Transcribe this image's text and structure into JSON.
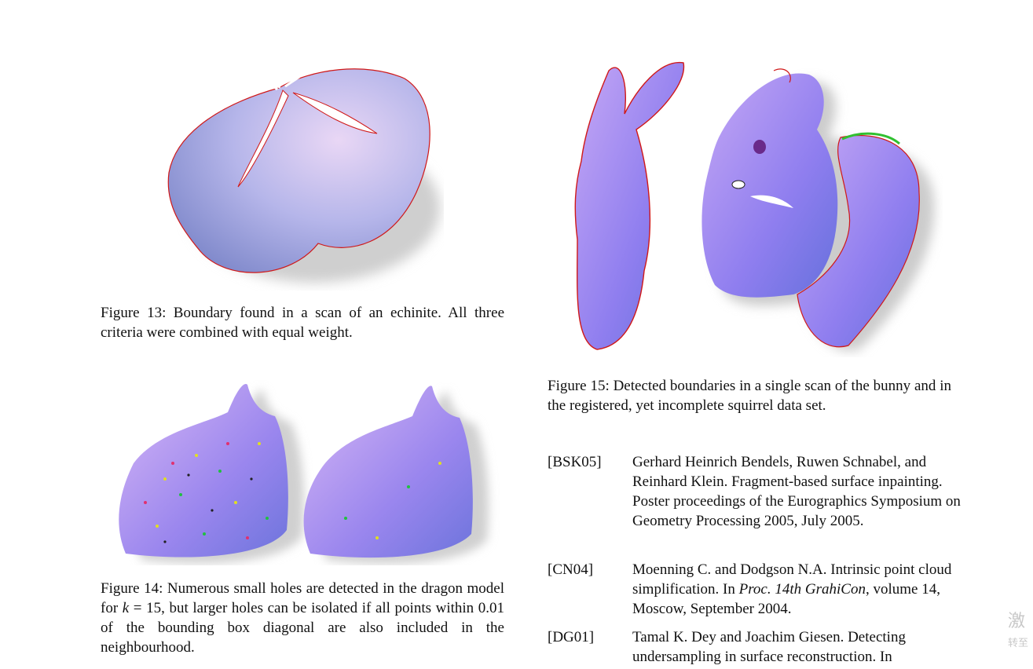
{
  "fig13": {
    "caption": "Figure 13:  Boundary found in a scan of an echinite.  All three criteria were combined with equal weight."
  },
  "fig14": {
    "caption_a": "Figure 14: Numerous small holes are detected in the dragon model for ",
    "caption_k": "k",
    "caption_b": " = 15, but larger holes can be isolated if all points within 0.01 of the bounding box diagonal are also included in the neighbourhood."
  },
  "fig15": {
    "caption": "Figure 15:  Detected boundaries in a single scan of the bunny and in the registered, yet incomplete squirrel data set."
  },
  "references": [
    {
      "key": "[BSK05]",
      "text": "Gerhard Heinrich Bendels, Ruwen Schnabel, and Reinhard Klein. Fragment-based surface inpainting. Poster proceedings of the Eurographics Symposium on Geometry Processing 2005, July 2005."
    },
    {
      "key": "[CN04]",
      "text_a": "Moenning C. and Dodgson N.A. Intrinsic point cloud simplification. In ",
      "text_i": "Proc. 14th GrahiCon",
      "text_b": ", volume 14, Moscow, September 2004."
    },
    {
      "key": "[DG01]",
      "text": "Tamal K. Dey and Joachim Giesen. Detecting undersampling in surface reconstruction. In"
    }
  ],
  "watermark": {
    "line1": "激",
    "line2": "转至"
  },
  "colors": {
    "surface": "#8a8ff0",
    "boundary": "#d01818",
    "shadow": "#bfbfbf"
  }
}
